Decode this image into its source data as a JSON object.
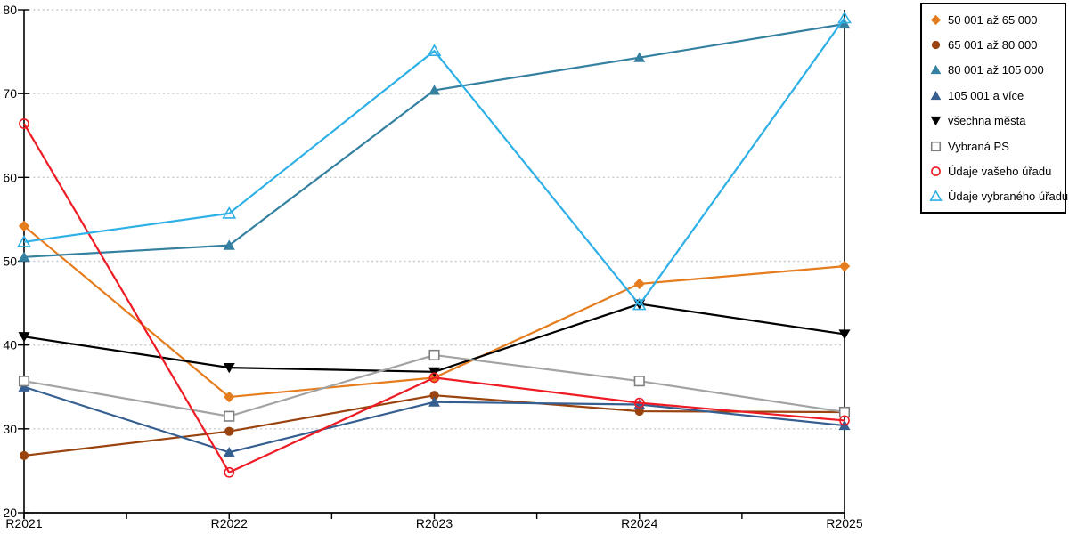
{
  "chart_data": {
    "type": "line",
    "title": "",
    "categories": [
      "R2021",
      "R2022",
      "R2023",
      "R2024",
      "R2025"
    ],
    "ylim": [
      20,
      80
    ],
    "yticks": [
      20,
      30,
      40,
      50,
      60,
      70,
      80
    ],
    "grid": "horizontal dotted gridlines at every 10 units, minor x ticks at midpoints",
    "legend_position": "outside top-right, vertical, black border",
    "series": [
      {
        "name": "50 001 až 65 000",
        "color": "#E57C1D",
        "marker": "diamond",
        "open": false,
        "values": [
          54.2,
          33.8,
          36.1,
          47.3,
          49.4
        ]
      },
      {
        "name": "65 001 až 80 000",
        "color": "#9A430E",
        "marker": "circle",
        "open": false,
        "values": [
          26.8,
          29.7,
          34.0,
          32.1,
          32.0
        ]
      },
      {
        "name": "80 001 až 105 000",
        "color": "#3480A0",
        "marker": "triangle-up",
        "open": false,
        "values": [
          50.5,
          51.9,
          70.4,
          74.3,
          78.3
        ]
      },
      {
        "name": "105 001 a více",
        "color": "#365F91",
        "marker": "triangle-up",
        "open": false,
        "values": [
          35.0,
          27.2,
          33.2,
          32.9,
          30.4
        ]
      },
      {
        "name": "všechna města",
        "color": "#000000",
        "marker": "triangle-down",
        "open": false,
        "values": [
          41.0,
          37.3,
          36.8,
          44.9,
          41.3
        ]
      },
      {
        "name": "Vybraná PS",
        "color": "#A3A3A3",
        "marker": "square",
        "open": true,
        "marker_color": "#7F7F7F",
        "values": [
          35.7,
          31.5,
          38.8,
          35.7,
          32.0
        ]
      },
      {
        "name": "Údaje vašeho úřadu",
        "color": "#EE1B24",
        "marker": "circle",
        "open": true,
        "values": [
          66.4,
          24.8,
          36.1,
          33.1,
          31.0
        ]
      },
      {
        "name": "Údaje vybraného úřadu",
        "color": "#2EB0E6",
        "marker": "triangle-up",
        "open": true,
        "values": [
          52.3,
          55.7,
          75.1,
          44.8,
          79.0
        ]
      }
    ]
  },
  "colors": {
    "background": "#FFFFFF",
    "axis": "#000000",
    "gridline": "#C9C9C9",
    "tick_label": "#000000"
  }
}
